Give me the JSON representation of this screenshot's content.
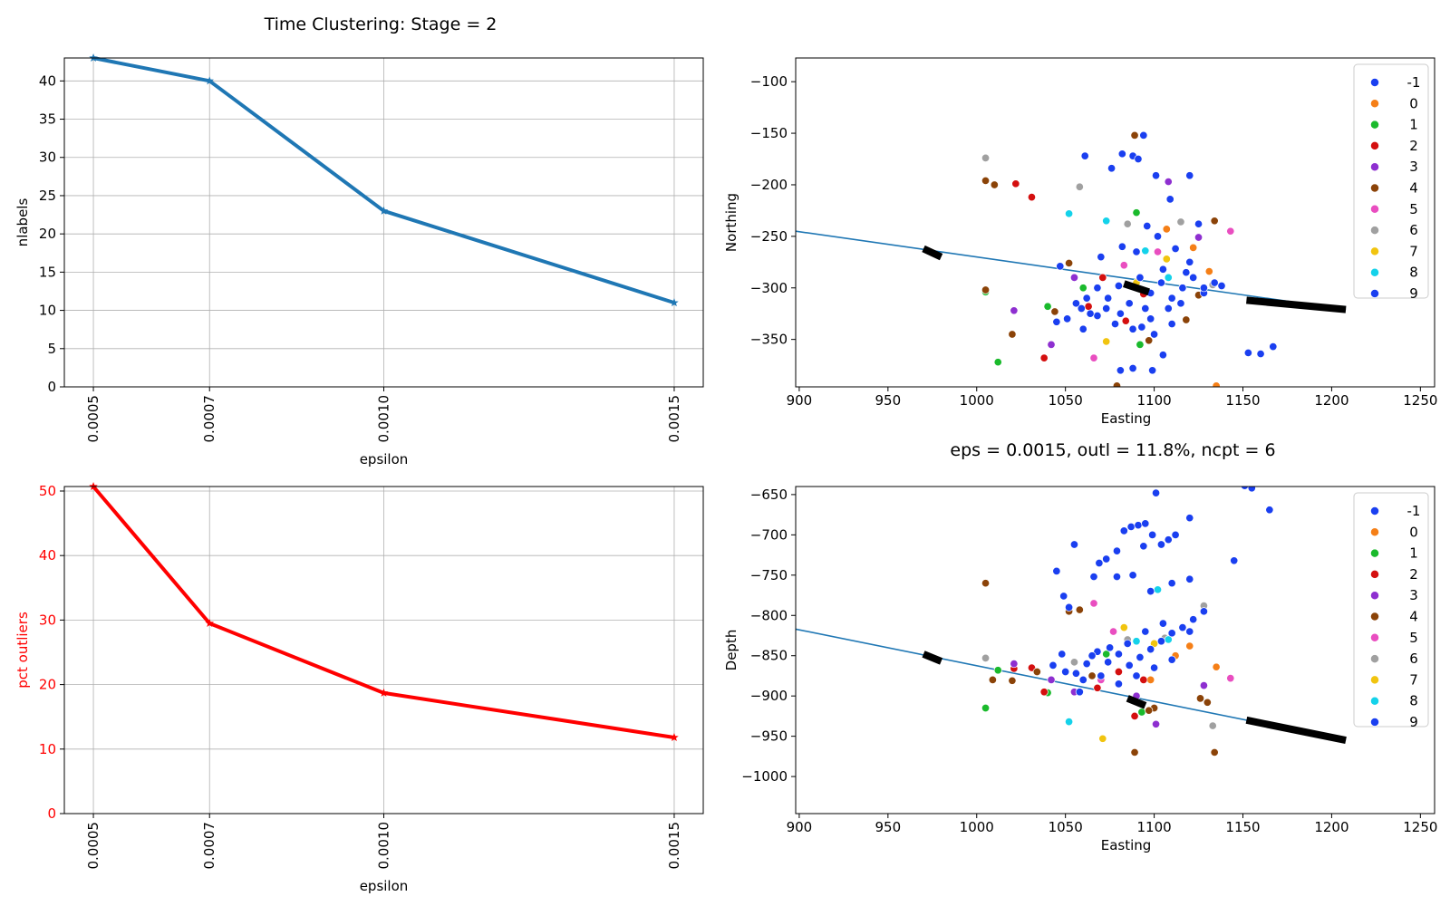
{
  "figure": {
    "suptitle": "Time Clustering: Stage = 2",
    "subtitle": "eps = 0.0015, outl = 11.8%, ncpt = 6"
  },
  "chart_data": [
    {
      "id": "nlabels",
      "type": "line",
      "xlabel": "epsilon",
      "ylabel": "nlabels",
      "x": [
        0.0005,
        0.0007,
        0.001,
        0.0015
      ],
      "x_tick_labels": [
        "0.0005",
        "0.0007",
        "0.0010",
        "0.0015"
      ],
      "xlim": [
        0.00045,
        0.00155
      ],
      "ylim": [
        0,
        43
      ],
      "y_ticks": [
        0,
        5,
        10,
        15,
        20,
        25,
        30,
        35,
        40
      ],
      "series": [
        {
          "values": [
            43,
            40,
            23,
            11
          ],
          "color": "#1f77b4"
        }
      ],
      "marker": "star",
      "grid": true
    },
    {
      "id": "outliers",
      "type": "line",
      "xlabel": "epsilon",
      "ylabel": "pct outliers",
      "ylabel_color": "#ff0000",
      "x": [
        0.0005,
        0.0007,
        0.001,
        0.0015
      ],
      "x_tick_labels": [
        "0.0005",
        "0.0007",
        "0.0010",
        "0.0015"
      ],
      "xlim": [
        0.00045,
        0.00155
      ],
      "ylim": [
        0,
        50.7
      ],
      "y_ticks": [
        0,
        10,
        20,
        30,
        40,
        50
      ],
      "series": [
        {
          "values": [
            50.7,
            29.5,
            18.7,
            11.8
          ],
          "color": "#ff0000"
        }
      ],
      "marker": "star",
      "grid": true
    },
    {
      "id": "map-northing",
      "type": "scatter",
      "xlabel": "Easting",
      "ylabel": "Northing",
      "xlim": [
        898,
        1258
      ],
      "ylim": [
        -396,
        -77
      ],
      "x_ticks": [
        900,
        950,
        1000,
        1050,
        1100,
        1150,
        1200,
        1250
      ],
      "y_ticks": [
        -100,
        -150,
        -200,
        -250,
        -300,
        -350
      ],
      "legend": {
        "placement": "top-right",
        "entries": [
          "-1",
          "0",
          "1",
          "2",
          "3",
          "4",
          "5",
          "6",
          "7",
          "8",
          "9"
        ],
        "colors": [
          "#1a3ff0",
          "#f57f17",
          "#1aba2c",
          "#d40f0f",
          "#8e2fd0",
          "#8b4308",
          "#e94ec0",
          "#a0a0a0",
          "#f1c40f",
          "#14d2ea",
          "#1a3ff0"
        ]
      },
      "fault_line": {
        "x": [
          898,
          1208
        ],
        "y": [
          -245,
          -321
        ],
        "color": "#1f77b4"
      },
      "black_segments": [
        {
          "x": [
            970,
            980
          ],
          "y": [
            -262,
            -270
          ]
        },
        {
          "x": [
            1083,
            1097
          ],
          "y": [
            -296,
            -304
          ]
        },
        {
          "x": [
            1152,
            1208
          ],
          "y": [
            -312,
            -321
          ]
        }
      ],
      "points": {
        "-1": [
          [
            1061,
            -172
          ],
          [
            1094,
            -152
          ]
        ],
        "0": [
          [
            1122,
            -261
          ],
          [
            1135,
            -395
          ],
          [
            1131,
            -284
          ],
          [
            1107,
            -243
          ]
        ],
        "1": [
          [
            1005,
            -304
          ],
          [
            1012,
            -372
          ],
          [
            1040,
            -318
          ],
          [
            1060,
            -300
          ],
          [
            1090,
            -227
          ],
          [
            1092,
            -355
          ]
        ],
        "2": [
          [
            1022,
            -199
          ],
          [
            1031,
            -212
          ],
          [
            1038,
            -368
          ],
          [
            1063,
            -318
          ],
          [
            1071,
            -290
          ],
          [
            1084,
            -332
          ],
          [
            1094,
            -306
          ]
        ],
        "3": [
          [
            1021,
            -322
          ],
          [
            1042,
            -355
          ],
          [
            1055,
            -290
          ],
          [
            1108,
            -197
          ],
          [
            1125,
            -251
          ]
        ],
        "4": [
          [
            1005,
            -196
          ],
          [
            1010,
            -200
          ],
          [
            1005,
            -302
          ],
          [
            1020,
            -345
          ],
          [
            1044,
            -323
          ],
          [
            1052,
            -276
          ],
          [
            1079,
            -395
          ],
          [
            1089,
            -152
          ],
          [
            1097,
            -351
          ],
          [
            1118,
            -331
          ],
          [
            1134,
            -235
          ],
          [
            1125,
            -307
          ]
        ],
        "5": [
          [
            1066,
            -368
          ],
          [
            1143,
            -245
          ],
          [
            1083,
            -278
          ],
          [
            1102,
            -265
          ]
        ],
        "6": [
          [
            1005,
            -174
          ],
          [
            1058,
            -202
          ],
          [
            1115,
            -236
          ],
          [
            1133,
            -297
          ],
          [
            1085,
            -238
          ]
        ],
        "7": [
          [
            1073,
            -352
          ],
          [
            1090,
            -295
          ],
          [
            1107,
            -272
          ]
        ],
        "8": [
          [
            1052,
            -228
          ],
          [
            1095,
            -264
          ],
          [
            1073,
            -235
          ],
          [
            1108,
            -290
          ]
        ],
        "9": [
          [
            1047,
            -279
          ],
          [
            1082,
            -170
          ],
          [
            1088,
            -172
          ],
          [
            1091,
            -175
          ],
          [
            1076,
            -184
          ],
          [
            1101,
            -191
          ],
          [
            1120,
            -191
          ],
          [
            1109,
            -214
          ],
          [
            1125,
            -238
          ],
          [
            1153,
            -363
          ],
          [
            1160,
            -364
          ],
          [
            1167,
            -357
          ],
          [
            1088,
            -378
          ],
          [
            1099,
            -380
          ],
          [
            1081,
            -380
          ],
          [
            1105,
            -365
          ],
          [
            1045,
            -333
          ],
          [
            1051,
            -330
          ],
          [
            1059,
            -320
          ],
          [
            1062,
            -310
          ],
          [
            1068,
            -300
          ],
          [
            1074,
            -310
          ],
          [
            1080,
            -298
          ],
          [
            1086,
            -315
          ],
          [
            1092,
            -290
          ],
          [
            1098,
            -305
          ],
          [
            1104,
            -295
          ],
          [
            1110,
            -310
          ],
          [
            1116,
            -300
          ],
          [
            1122,
            -290
          ],
          [
            1128,
            -305
          ],
          [
            1134,
            -295
          ],
          [
            1068,
            -327
          ],
          [
            1078,
            -335
          ],
          [
            1088,
            -340
          ],
          [
            1098,
            -330
          ],
          [
            1108,
            -320
          ],
          [
            1115,
            -315
          ],
          [
            1060,
            -340
          ],
          [
            1102,
            -250
          ],
          [
            1096,
            -240
          ],
          [
            1112,
            -262
          ],
          [
            1120,
            -275
          ],
          [
            1070,
            -270
          ],
          [
            1082,
            -260
          ],
          [
            1056,
            -315
          ],
          [
            1064,
            -325
          ],
          [
            1073,
            -320
          ],
          [
            1095,
            -320
          ],
          [
            1105,
            -282
          ],
          [
            1118,
            -285
          ],
          [
            1090,
            -265
          ],
          [
            1128,
            -300
          ],
          [
            1138,
            -298
          ],
          [
            1081,
            -325
          ],
          [
            1093,
            -338
          ],
          [
            1100,
            -345
          ],
          [
            1110,
            -335
          ]
        ]
      },
      "grid": false
    },
    {
      "id": "map-depth",
      "type": "scatter",
      "xlabel": "Easting",
      "ylabel": "Depth",
      "xlim": [
        898,
        1258
      ],
      "ylim": [
        -1046,
        -640
      ],
      "x_ticks": [
        900,
        950,
        1000,
        1050,
        1100,
        1150,
        1200,
        1250
      ],
      "y_ticks": [
        -650,
        -700,
        -750,
        -800,
        -850,
        -900,
        -950,
        -1000
      ],
      "legend": {
        "placement": "top-right",
        "entries": [
          "-1",
          "0",
          "1",
          "2",
          "3",
          "4",
          "5",
          "6",
          "7",
          "8",
          "9"
        ],
        "colors": [
          "#1a3ff0",
          "#f57f17",
          "#1aba2c",
          "#d40f0f",
          "#8e2fd0",
          "#8b4308",
          "#e94ec0",
          "#a0a0a0",
          "#f1c40f",
          "#14d2ea",
          "#1a3ff0"
        ]
      },
      "fault_line": {
        "x": [
          898,
          1208
        ],
        "y": [
          -817,
          -955
        ],
        "color": "#1f77b4"
      },
      "black_segments": [
        {
          "x": [
            970,
            980
          ],
          "y": [
            -848,
            -857
          ]
        },
        {
          "x": [
            1085,
            1095
          ],
          "y": [
            -903,
            -912
          ]
        },
        {
          "x": [
            1152,
            1208
          ],
          "y": [
            -930,
            -955
          ]
        }
      ],
      "points": {
        "-1": [
          [
            1049,
            -776
          ],
          [
            1052,
            -790
          ]
        ],
        "0": [
          [
            1135,
            -864
          ],
          [
            1112,
            -850
          ],
          [
            1120,
            -838
          ],
          [
            1098,
            -880
          ]
        ],
        "1": [
          [
            1005,
            -915
          ],
          [
            1012,
            -868
          ],
          [
            1040,
            -896
          ],
          [
            1093,
            -920
          ],
          [
            1073,
            -848
          ]
        ],
        "2": [
          [
            1021,
            -866
          ],
          [
            1031,
            -865
          ],
          [
            1038,
            -895
          ],
          [
            1068,
            -890
          ],
          [
            1089,
            -925
          ],
          [
            1094,
            -880
          ],
          [
            1080,
            -870
          ]
        ],
        "3": [
          [
            1021,
            -860
          ],
          [
            1042,
            -880
          ],
          [
            1055,
            -895
          ],
          [
            1090,
            -900
          ],
          [
            1101,
            -935
          ],
          [
            1128,
            -887
          ]
        ],
        "4": [
          [
            1005,
            -760
          ],
          [
            1009,
            -880
          ],
          [
            1020,
            -881
          ],
          [
            1034,
            -870
          ],
          [
            1052,
            -795
          ],
          [
            1058,
            -793
          ],
          [
            1065,
            -875
          ],
          [
            1089,
            -970
          ],
          [
            1100,
            -915
          ],
          [
            1134,
            -970
          ],
          [
            1126,
            -903
          ],
          [
            1130,
            -908
          ],
          [
            1097,
            -918
          ]
        ],
        "5": [
          [
            1066,
            -785
          ],
          [
            1143,
            -878
          ],
          [
            1070,
            -880
          ],
          [
            1077,
            -820
          ]
        ],
        "6": [
          [
            1005,
            -853
          ],
          [
            1055,
            -858
          ],
          [
            1128,
            -788
          ],
          [
            1133,
            -937
          ],
          [
            1085,
            -830
          ],
          [
            1106,
            -828
          ]
        ],
        "7": [
          [
            1071,
            -953
          ],
          [
            1083,
            -815
          ],
          [
            1100,
            -835
          ]
        ],
        "8": [
          [
            1052,
            -932
          ],
          [
            1102,
            -768
          ],
          [
            1090,
            -832
          ],
          [
            1108,
            -830
          ]
        ],
        "9": [
          [
            1045,
            -745
          ],
          [
            1055,
            -712
          ],
          [
            1069,
            -735
          ],
          [
            1079,
            -720
          ],
          [
            1073,
            -730
          ],
          [
            1066,
            -752
          ],
          [
            1083,
            -695
          ],
          [
            1087,
            -690
          ],
          [
            1091,
            -688
          ],
          [
            1095,
            -686
          ],
          [
            1099,
            -700
          ],
          [
            1104,
            -712
          ],
          [
            1108,
            -706
          ],
          [
            1112,
            -700
          ],
          [
            1101,
            -648
          ],
          [
            1120,
            -679
          ],
          [
            1151,
            -639
          ],
          [
            1155,
            -642
          ],
          [
            1165,
            -669
          ],
          [
            1145,
            -732
          ],
          [
            1098,
            -770
          ],
          [
            1120,
            -755
          ],
          [
            1079,
            -752
          ],
          [
            1088,
            -750
          ],
          [
            1094,
            -714
          ],
          [
            1110,
            -760
          ],
          [
            1043,
            -862
          ],
          [
            1048,
            -848
          ],
          [
            1056,
            -872
          ],
          [
            1062,
            -860
          ],
          [
            1068,
            -845
          ],
          [
            1074,
            -858
          ],
          [
            1080,
            -848
          ],
          [
            1086,
            -862
          ],
          [
            1092,
            -852
          ],
          [
            1098,
            -842
          ],
          [
            1104,
            -832
          ],
          [
            1110,
            -822
          ],
          [
            1116,
            -815
          ],
          [
            1122,
            -805
          ],
          [
            1128,
            -795
          ],
          [
            1060,
            -880
          ],
          [
            1070,
            -875
          ],
          [
            1080,
            -885
          ],
          [
            1090,
            -875
          ],
          [
            1100,
            -865
          ],
          [
            1110,
            -855
          ],
          [
            1050,
            -870
          ],
          [
            1120,
            -820
          ],
          [
            1105,
            -810
          ],
          [
            1095,
            -820
          ],
          [
            1085,
            -835
          ],
          [
            1075,
            -840
          ],
          [
            1065,
            -850
          ],
          [
            1058,
            -895
          ]
        ]
      },
      "grid": false
    }
  ]
}
